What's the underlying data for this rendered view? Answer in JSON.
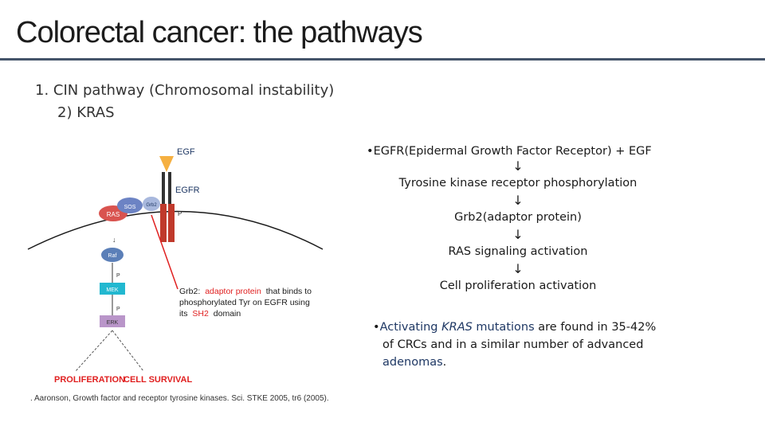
{
  "header": {
    "title": "Colorectal cancer: the pathways"
  },
  "outline": {
    "item1": "1.   CIN pathway (Chromosomal instability)",
    "item2": "2) KRAS"
  },
  "figure": {
    "egf": "EGF",
    "egfr": "EGFR",
    "ras": "RAS",
    "sos": "SOS",
    "grb2": "Grb2",
    "p": "P",
    "raf": "Raf",
    "mek": "MEK",
    "erk": "ERK",
    "note_prefix": "Grb2:",
    "note_l1_red": "adaptor protein",
    "note_l1_rest": "that binds to",
    "note_l2": "phosphorylated Tyr on EGFR using",
    "note_l3_start": "its",
    "note_l3_red": "SH2",
    "note_l3_end": "domain",
    "proliferation": "PROLIFERATION",
    "survival": "CELL SURVIVAL",
    "citation": ". Aaronson, Growth factor and receptor tyrosine kinases. Sci. STKE 2005, tr6 (2005)."
  },
  "flow": {
    "bullet": "•",
    "steps": [
      "EGFR(Epidermal Growth Factor Receptor) + EGF",
      "Tyrosine kinase receptor phosphorylation",
      "Grb2(adaptor protein)",
      "RAS signaling activation",
      "Cell proliferation activation"
    ],
    "arrow": "↓"
  },
  "note": {
    "bullet": "•",
    "a": "Activating ",
    "kras": "KRAS",
    "b": " mutations",
    "c": " are found in 35-42%",
    "d": "of CRCs and in a similar number of advanced",
    "e": "adenomas",
    "f": "."
  },
  "colors": {
    "rule": "#44546a",
    "red": "#e02020",
    "ras": "#d9534f",
    "cyan": "#22b8d0",
    "dark_blue": "#1f3864"
  }
}
